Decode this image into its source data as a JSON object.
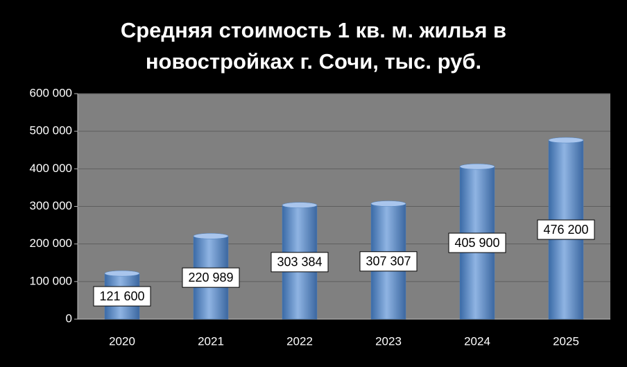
{
  "chart_data": {
    "type": "bar",
    "title": [
      "Средняя стоимость 1 кв. м. жилья в",
      "новостройках  г. Сочи, тыс. руб."
    ],
    "categories": [
      "2020",
      "2021",
      "2022",
      "2023",
      "2024",
      "2025"
    ],
    "values": [
      121600,
      220989,
      303384,
      307307,
      405900,
      476200
    ],
    "value_labels": [
      "121 600",
      "220 989",
      "303 384",
      "307 307",
      "405 900",
      "476 200"
    ],
    "color": "#4f81bd",
    "ylim": [
      0,
      600000
    ],
    "yticks": [
      {
        "value": 0,
        "label": "0"
      },
      {
        "value": 100000,
        "label": "100 000"
      },
      {
        "value": 200000,
        "label": "200 000"
      },
      {
        "value": 300000,
        "label": "300 000"
      },
      {
        "value": 400000,
        "label": "400 000"
      },
      {
        "value": 500000,
        "label": "500 000"
      },
      {
        "value": 600000,
        "label": "600 000"
      }
    ],
    "grid": true
  }
}
